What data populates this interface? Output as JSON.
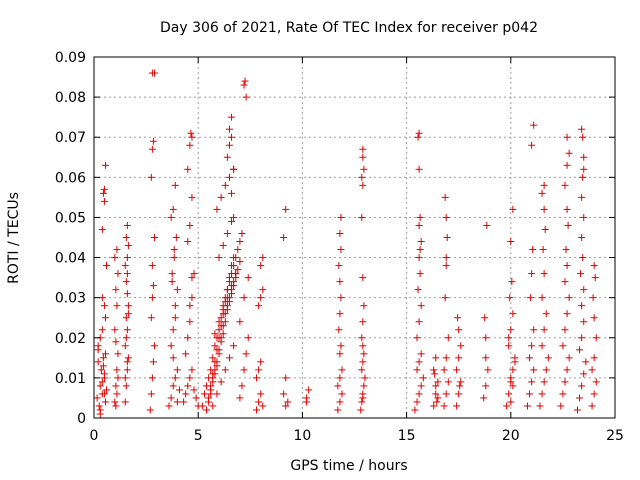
{
  "chart_data": {
    "type": "scatter",
    "title": "Day 306 of 2021, Rate Of TEC Index for receiver p042",
    "xlabel": "GPS time / hours",
    "ylabel": "ROTI / TECUs",
    "xlim": [
      0,
      25
    ],
    "ylim": [
      0,
      0.09
    ],
    "x_ticks": [
      "0",
      "5",
      "10",
      "15",
      "20",
      "25"
    ],
    "y_ticks": [
      "0",
      "0.01",
      "0.02",
      "0.03",
      "0.04",
      "0.05",
      "0.06",
      "0.07",
      "0.08",
      "0.09"
    ],
    "grid": true,
    "legend": "none",
    "marker": "plus",
    "color": "#e00000",
    "series": [
      {
        "x": [
          0.15,
          0.2,
          0.25,
          0.3,
          0.35,
          0.4,
          0.45,
          0.5,
          0.55,
          0.6,
          0.2,
          0.3,
          0.4,
          0.5,
          0.6,
          0.4,
          0.5,
          0.45,
          0.5,
          0.55,
          0.3,
          0.4,
          0.5,
          0.55,
          0.45,
          0.3,
          0.5,
          0.2,
          0.55,
          0.4,
          1.0,
          1.05,
          1.1,
          1.15,
          1.0,
          1.1,
          1.05,
          1.15,
          1.0,
          1.1,
          1.05,
          1.1,
          1.15,
          1.05,
          1.5,
          1.55,
          1.6,
          1.65,
          1.5,
          1.6,
          1.55,
          1.65,
          1.6,
          1.55,
          1.5,
          1.6,
          1.65,
          1.55,
          1.6,
          1.5,
          1.6,
          1.55,
          1.65,
          1.6,
          2.7,
          2.75,
          2.8,
          2.85,
          2.9,
          2.75,
          2.8,
          2.85,
          2.8,
          2.9,
          2.75,
          2.8,
          2.85,
          2.8,
          2.9,
          3.6,
          3.7,
          3.8,
          3.9,
          4.0,
          4.1,
          3.7,
          3.8,
          3.9,
          4.0,
          3.75,
          3.85,
          3.95,
          3.7,
          3.8,
          3.9,
          4.0,
          3.8,
          3.9,
          3.75,
          3.85,
          4.3,
          4.4,
          4.5,
          4.6,
          4.7,
          4.8,
          4.9,
          5.0,
          4.4,
          4.5,
          4.6,
          4.7,
          4.8,
          4.5,
          4.6,
          4.7,
          4.5,
          4.6,
          4.7,
          4.65,
          4.7,
          4.6,
          5.2,
          5.3,
          5.4,
          5.5,
          5.6,
          5.7,
          5.8,
          5.9,
          6.0,
          6.1,
          6.2,
          6.3,
          6.4,
          6.5,
          6.6,
          6.7,
          6.8,
          6.9,
          7.0,
          7.1,
          5.4,
          5.5,
          5.6,
          5.7,
          5.8,
          5.9,
          6.0,
          6.1,
          6.2,
          6.3,
          6.4,
          6.5,
          6.6,
          6.7,
          6.8,
          6.9,
          7.0,
          5.5,
          5.6,
          5.7,
          5.8,
          5.9,
          6.0,
          6.1,
          6.2,
          6.3,
          6.4,
          6.5,
          6.6,
          6.7,
          6.8,
          5.6,
          5.7,
          5.8,
          5.9,
          6.0,
          6.1,
          6.2,
          6.3,
          6.4,
          6.5,
          6.6,
          6.7,
          5.7,
          5.9,
          6.1,
          6.3,
          6.5,
          6.7,
          5.8,
          6.0,
          6.2,
          6.4,
          6.6,
          6.8,
          6.0,
          6.2,
          6.4,
          6.6,
          5.9,
          6.1,
          6.3,
          6.5,
          6.7,
          6.4,
          6.5,
          6.6,
          6.5,
          6.6,
          6.7,
          6.6,
          6.7,
          7.2,
          7.25,
          7.3,
          7.0,
          7.1,
          7.2,
          7.3,
          7.4,
          7.0,
          7.2,
          7.4,
          7.8,
          7.9,
          8.0,
          8.1,
          7.8,
          7.9,
          8.0,
          7.9,
          8.0,
          8.1,
          8.0,
          8.1,
          9.1,
          9.2,
          9.3,
          9.1,
          9.2,
          9.2,
          10.2,
          10.3,
          10.2,
          11.7,
          11.8,
          11.9,
          11.7,
          11.8,
          11.9,
          11.8,
          11.85,
          11.75,
          11.8,
          11.85,
          11.8,
          11.75,
          11.85,
          11.8,
          11.85,
          12.8,
          12.85,
          12.9,
          12.95,
          13.0,
          12.85,
          12.9,
          12.95,
          12.9,
          12.85,
          12.9,
          12.95,
          12.9,
          12.85,
          12.9,
          12.95,
          12.9,
          12.9,
          12.85,
          12.9,
          15.4,
          15.5,
          15.6,
          15.7,
          15.8,
          15.5,
          15.6,
          15.7,
          15.5,
          15.6,
          15.7,
          15.55,
          15.65,
          15.6,
          15.7,
          15.6,
          15.65,
          15.6,
          15.55,
          15.6,
          15.65,
          16.3,
          16.4,
          16.5,
          16.3,
          16.4,
          16.5,
          16.4,
          16.35,
          16.45,
          16.8,
          16.9,
          17.0,
          16.8,
          16.9,
          17.0,
          16.85,
          16.9,
          16.95,
          16.9,
          16.85,
          16.9,
          17.4,
          17.5,
          17.6,
          17.4,
          17.5,
          17.6,
          17.5,
          17.45,
          17.55,
          18.7,
          18.8,
          18.9,
          18.8,
          18.75,
          18.85,
          18.8,
          19.8,
          19.9,
          20.0,
          20.1,
          20.2,
          19.9,
          20.0,
          20.1,
          19.95,
          20.05,
          20.0,
          20.1,
          20.2,
          20.0,
          20.1,
          19.9,
          20.0,
          20.8,
          20.9,
          21.0,
          21.1,
          20.9,
          21.0,
          21.1,
          20.95,
          21.0,
          21.05,
          21.0,
          21.1,
          21.4,
          21.5,
          21.6,
          21.7,
          21.8,
          21.5,
          21.6,
          21.7,
          21.5,
          21.6,
          21.55,
          21.65,
          21.6,
          21.5,
          21.6,
          22.4,
          22.5,
          22.6,
          22.7,
          22.8,
          22.5,
          22.6,
          22.7,
          22.8,
          22.6,
          22.7,
          22.65,
          22.75,
          22.7,
          22.6,
          22.7,
          22.8,
          22.7,
          23.2,
          23.3,
          23.4,
          23.5,
          23.6,
          23.3,
          23.4,
          23.5,
          23.4,
          23.5,
          23.35,
          23.45,
          23.4,
          23.5,
          23.4,
          23.45,
          23.5,
          23.45,
          23.4,
          23.5,
          23.9,
          24.0,
          24.1,
          23.9,
          24.0,
          24.1,
          24.0,
          23.95,
          24.05,
          24.0
        ],
        "y": [
          0.005,
          0.014,
          0.003,
          0.008,
          0.012,
          0.006,
          0.015,
          0.01,
          0.004,
          0.007,
          0.018,
          0.02,
          0.022,
          0.028,
          0.038,
          0.047,
          0.054,
          0.056,
          0.057,
          0.063,
          0.002,
          0.009,
          0.011,
          0.016,
          0.013,
          0.001,
          0.006,
          0.017,
          0.025,
          0.03,
          0.004,
          0.008,
          0.012,
          0.016,
          0.022,
          0.028,
          0.032,
          0.036,
          0.04,
          0.042,
          0.003,
          0.006,
          0.01,
          0.019,
          0.004,
          0.008,
          0.012,
          0.015,
          0.018,
          0.022,
          0.025,
          0.028,
          0.031,
          0.034,
          0.038,
          0.04,
          0.043,
          0.045,
          0.048,
          0.01,
          0.014,
          0.02,
          0.026,
          0.036,
          0.002,
          0.006,
          0.01,
          0.014,
          0.018,
          0.025,
          0.03,
          0.033,
          0.038,
          0.045,
          0.06,
          0.067,
          0.069,
          0.086,
          0.086,
          0.003,
          0.005,
          0.008,
          0.01,
          0.012,
          0.007,
          0.018,
          0.022,
          0.028,
          0.032,
          0.036,
          0.04,
          0.045,
          0.05,
          0.052,
          0.058,
          0.004,
          0.015,
          0.025,
          0.034,
          0.042,
          0.004,
          0.006,
          0.008,
          0.01,
          0.012,
          0.007,
          0.005,
          0.003,
          0.016,
          0.02,
          0.024,
          0.03,
          0.036,
          0.044,
          0.048,
          0.055,
          0.062,
          0.068,
          0.07,
          0.071,
          0.035,
          0.028,
          0.003,
          0.006,
          0.008,
          0.01,
          0.012,
          0.015,
          0.018,
          0.02,
          0.022,
          0.025,
          0.028,
          0.03,
          0.032,
          0.034,
          0.036,
          0.038,
          0.04,
          0.042,
          0.044,
          0.046,
          0.002,
          0.004,
          0.006,
          0.009,
          0.011,
          0.013,
          0.016,
          0.019,
          0.021,
          0.024,
          0.027,
          0.029,
          0.031,
          0.033,
          0.035,
          0.037,
          0.039,
          0.005,
          0.007,
          0.01,
          0.012,
          0.014,
          0.017,
          0.02,
          0.023,
          0.026,
          0.028,
          0.03,
          0.032,
          0.034,
          0.036,
          0.008,
          0.011,
          0.014,
          0.017,
          0.02,
          0.023,
          0.026,
          0.029,
          0.032,
          0.035,
          0.038,
          0.04,
          0.003,
          0.006,
          0.009,
          0.012,
          0.015,
          0.018,
          0.021,
          0.024,
          0.027,
          0.03,
          0.033,
          0.036,
          0.04,
          0.043,
          0.046,
          0.049,
          0.052,
          0.055,
          0.058,
          0.06,
          0.062,
          0.065,
          0.068,
          0.07,
          0.072,
          0.075,
          0.062,
          0.056,
          0.05,
          0.083,
          0.084,
          0.08,
          0.005,
          0.008,
          0.012,
          0.016,
          0.02,
          0.024,
          0.03,
          0.035,
          0.002,
          0.004,
          0.006,
          0.003,
          0.01,
          0.012,
          0.014,
          0.028,
          0.03,
          0.032,
          0.038,
          0.04,
          0.006,
          0.01,
          0.004,
          0.045,
          0.052,
          0.003,
          0.005,
          0.007,
          0.004,
          0.002,
          0.004,
          0.006,
          0.008,
          0.01,
          0.012,
          0.016,
          0.018,
          0.022,
          0.026,
          0.03,
          0.034,
          0.038,
          0.042,
          0.046,
          0.05,
          0.002,
          0.004,
          0.006,
          0.008,
          0.01,
          0.012,
          0.014,
          0.016,
          0.018,
          0.02,
          0.024,
          0.028,
          0.035,
          0.05,
          0.058,
          0.062,
          0.065,
          0.067,
          0.06,
          0.005,
          0.002,
          0.004,
          0.006,
          0.008,
          0.01,
          0.012,
          0.014,
          0.016,
          0.02,
          0.024,
          0.028,
          0.032,
          0.036,
          0.04,
          0.044,
          0.048,
          0.05,
          0.062,
          0.07,
          0.071,
          0.042,
          0.003,
          0.006,
          0.009,
          0.012,
          0.015,
          0.005,
          0.008,
          0.011,
          0.004,
          0.003,
          0.006,
          0.009,
          0.012,
          0.015,
          0.02,
          0.03,
          0.04,
          0.045,
          0.05,
          0.055,
          0.038,
          0.003,
          0.006,
          0.009,
          0.012,
          0.015,
          0.018,
          0.022,
          0.025,
          0.008,
          0.005,
          0.008,
          0.012,
          0.02,
          0.025,
          0.048,
          0.015,
          0.003,
          0.006,
          0.009,
          0.012,
          0.015,
          0.018,
          0.022,
          0.026,
          0.03,
          0.034,
          0.004,
          0.008,
          0.014,
          0.044,
          0.052,
          0.02,
          0.01,
          0.003,
          0.006,
          0.009,
          0.012,
          0.015,
          0.018,
          0.022,
          0.03,
          0.036,
          0.042,
          0.068,
          0.073,
          0.003,
          0.006,
          0.009,
          0.012,
          0.015,
          0.018,
          0.022,
          0.026,
          0.03,
          0.036,
          0.042,
          0.047,
          0.052,
          0.056,
          0.058,
          0.003,
          0.006,
          0.009,
          0.012,
          0.015,
          0.018,
          0.022,
          0.026,
          0.03,
          0.034,
          0.038,
          0.042,
          0.048,
          0.052,
          0.058,
          0.063,
          0.066,
          0.07,
          0.002,
          0.005,
          0.008,
          0.011,
          0.014,
          0.017,
          0.02,
          0.024,
          0.028,
          0.032,
          0.036,
          0.04,
          0.045,
          0.05,
          0.055,
          0.06,
          0.065,
          0.07,
          0.072,
          0.062,
          0.003,
          0.006,
          0.009,
          0.012,
          0.015,
          0.02,
          0.025,
          0.03,
          0.035,
          0.038
        ]
      }
    ]
  }
}
